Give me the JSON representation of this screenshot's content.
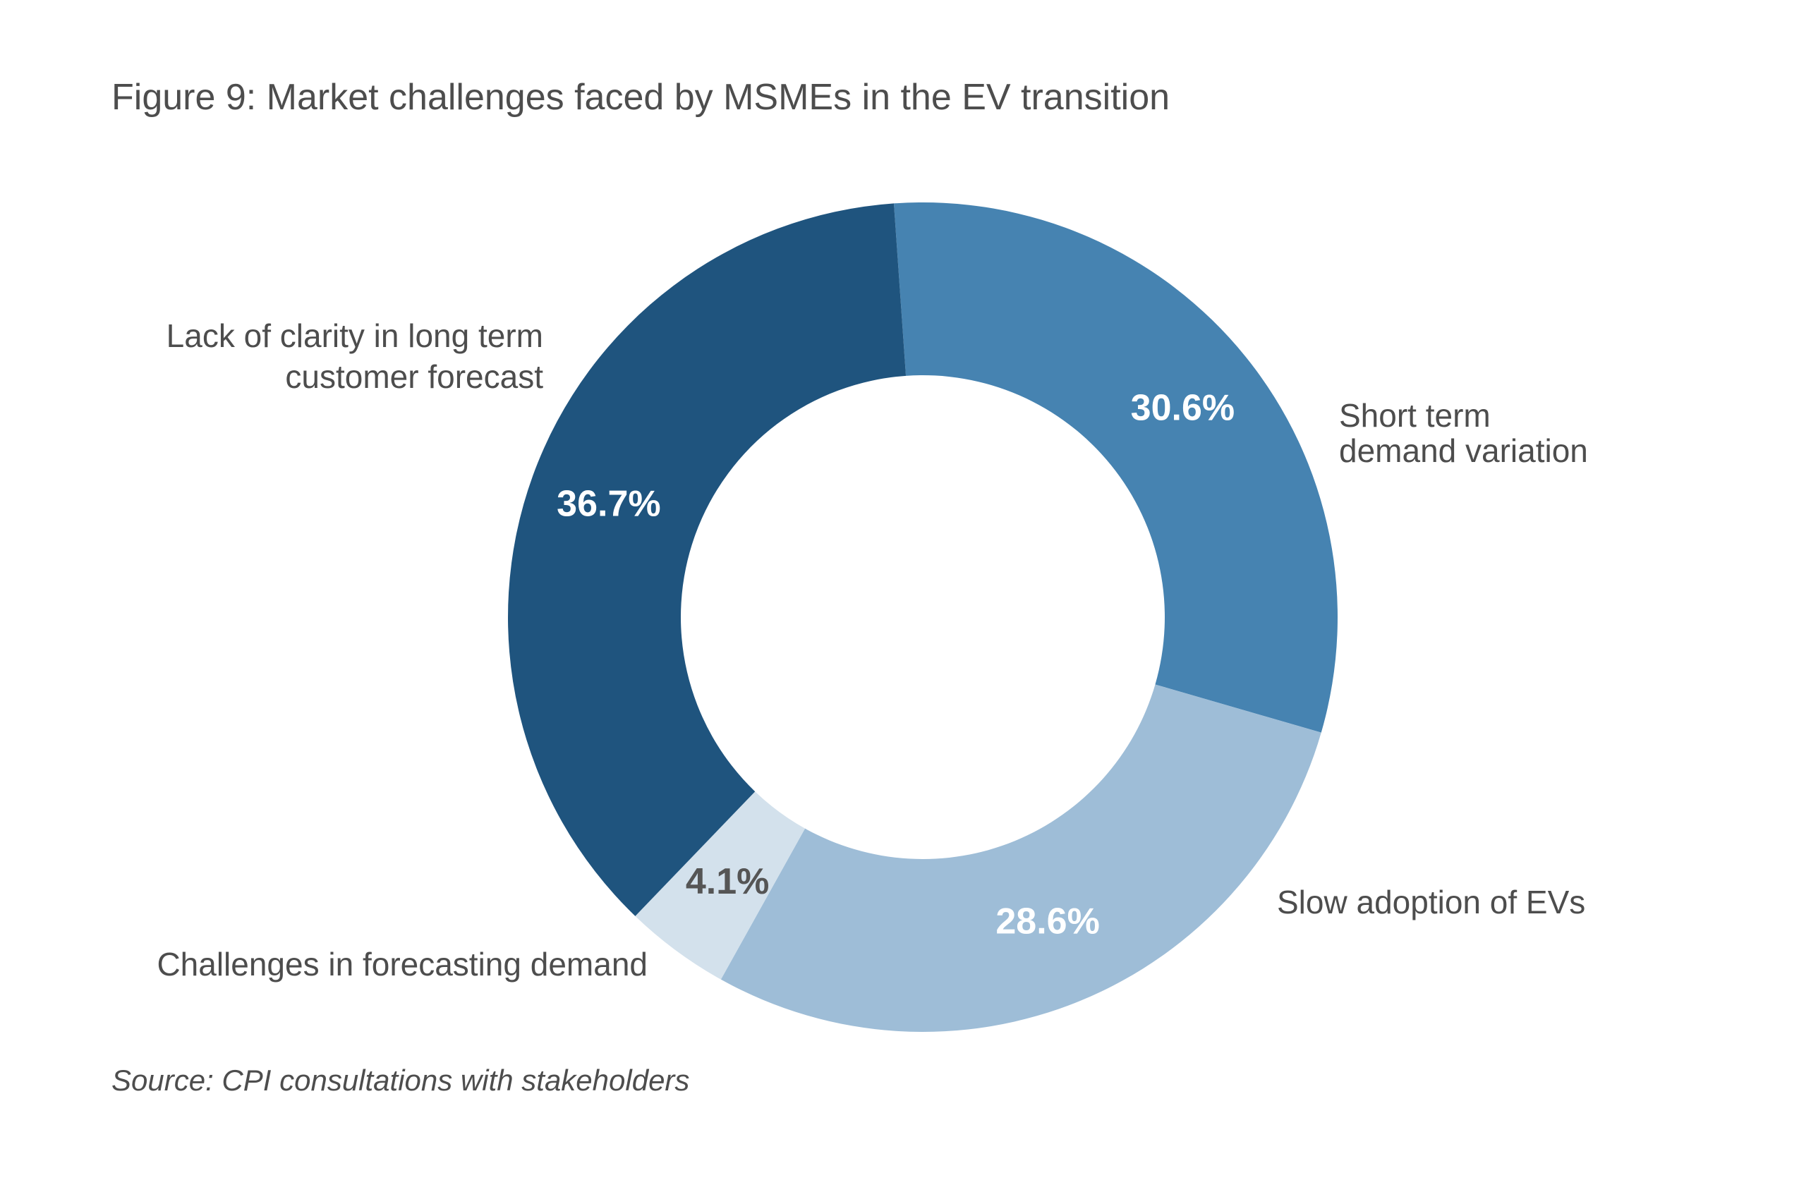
{
  "title": "Figure 9: Market challenges faced by MSMEs in the EV transition",
  "source": "Source: CPI consultations with stakeholders",
  "chart_data": {
    "type": "pie",
    "variant": "donut",
    "unit": "%",
    "slices": [
      {
        "label_lines": [
          "Short term",
          "demand variation"
        ],
        "value": 30.6,
        "value_label": "30.6%",
        "color": "#4683b1",
        "value_label_color": "#ffffff"
      },
      {
        "label_lines": [
          "Slow adoption of EVs"
        ],
        "value": 28.6,
        "value_label": "28.6%",
        "color": "#9ebdd7",
        "value_label_color": "#ffffff"
      },
      {
        "label_lines": [
          "Challenges in forecasting demand"
        ],
        "value": 4.1,
        "value_label": "4.1%",
        "color": "#d3e1ec",
        "value_label_color": "#555555"
      },
      {
        "label_lines": [
          "Lack of clarity in long term",
          "customer forecast"
        ],
        "value": 36.7,
        "value_label": "36.7%",
        "color": "#1f547e",
        "value_label_color": "#ffffff"
      }
    ],
    "legend": "none"
  }
}
